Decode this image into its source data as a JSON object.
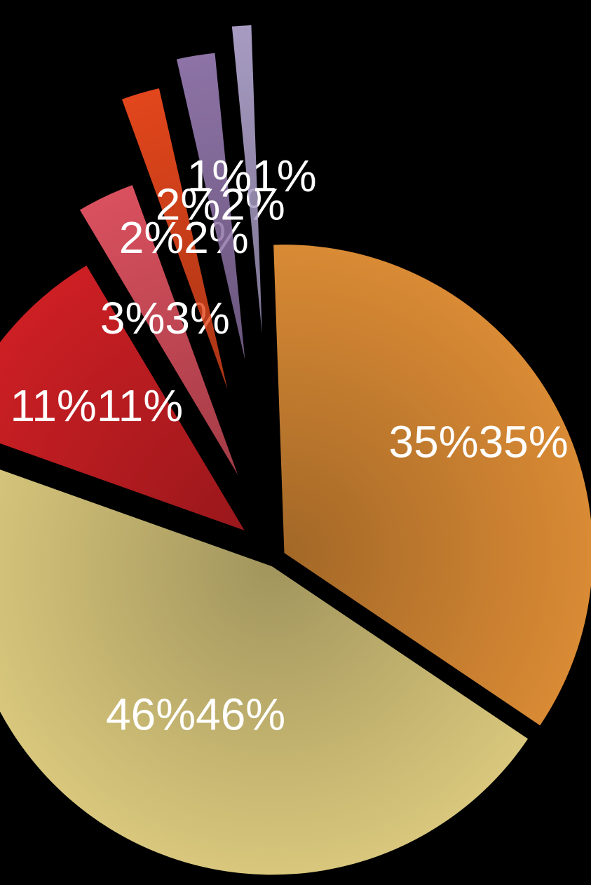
{
  "chart_data": {
    "type": "pie",
    "values": [
      35,
      46,
      11,
      3,
      2,
      2,
      1
    ],
    "value_labels": [
      "35%",
      "46%",
      "11%",
      "3%",
      "2%",
      "2%",
      "1%"
    ],
    "colors": [
      "#d98a34",
      "#d8c77c",
      "#cc1f24",
      "#d9505e",
      "#e2461c",
      "#8d73a6",
      "#a79bc2"
    ]
  }
}
